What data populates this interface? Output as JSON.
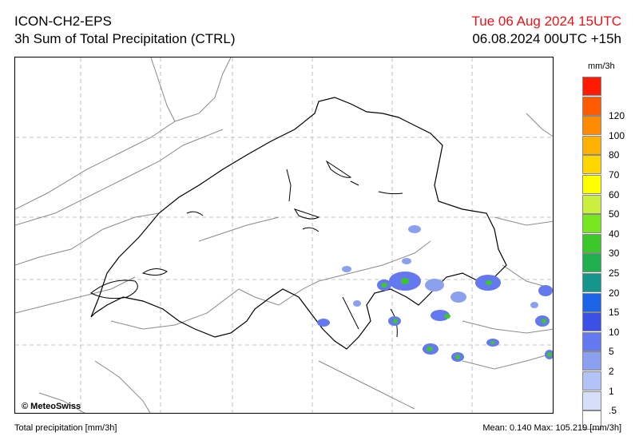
{
  "header": {
    "model": "ICON-CH2-EPS",
    "product": "3h Sum of Total Precipitation (CTRL)",
    "valid_time": "Tue 06 Aug 2024 15UTC",
    "run_time": "06.08.2024 00UTC +15h"
  },
  "map": {
    "copyright": "© MeteoSwiss"
  },
  "legend": {
    "unit": "mm/3h",
    "items": [
      {
        "label": "",
        "color": "#ff1a00"
      },
      {
        "label": "120",
        "color": "#ff5a00"
      },
      {
        "label": "100",
        "color": "#ff8c00"
      },
      {
        "label": "80",
        "color": "#ffb000"
      },
      {
        "label": "70",
        "color": "#ffd700"
      },
      {
        "label": "60",
        "color": "#ffff00"
      },
      {
        "label": "50",
        "color": "#c8f03c"
      },
      {
        "label": "40",
        "color": "#78e61e"
      },
      {
        "label": "30",
        "color": "#3cc828"
      },
      {
        "label": "25",
        "color": "#21b050"
      },
      {
        "label": "20",
        "color": "#14968c"
      },
      {
        "label": "15",
        "color": "#1e64e6"
      },
      {
        "label": "10",
        "color": "#3c50e6"
      },
      {
        "label": "5",
        "color": "#6478f0"
      },
      {
        "label": "2",
        "color": "#8ca0f0"
      },
      {
        "label": "1",
        "color": "#b4c3f5"
      },
      {
        "label": ".5",
        "color": "#d7def9"
      },
      {
        "label": "",
        "color": "#ffffff"
      }
    ]
  },
  "footer": {
    "left": "Total precipitation [mm/3h]",
    "right": "Mean:   0.140 Max: 105.219 [mm/3h]"
  }
}
